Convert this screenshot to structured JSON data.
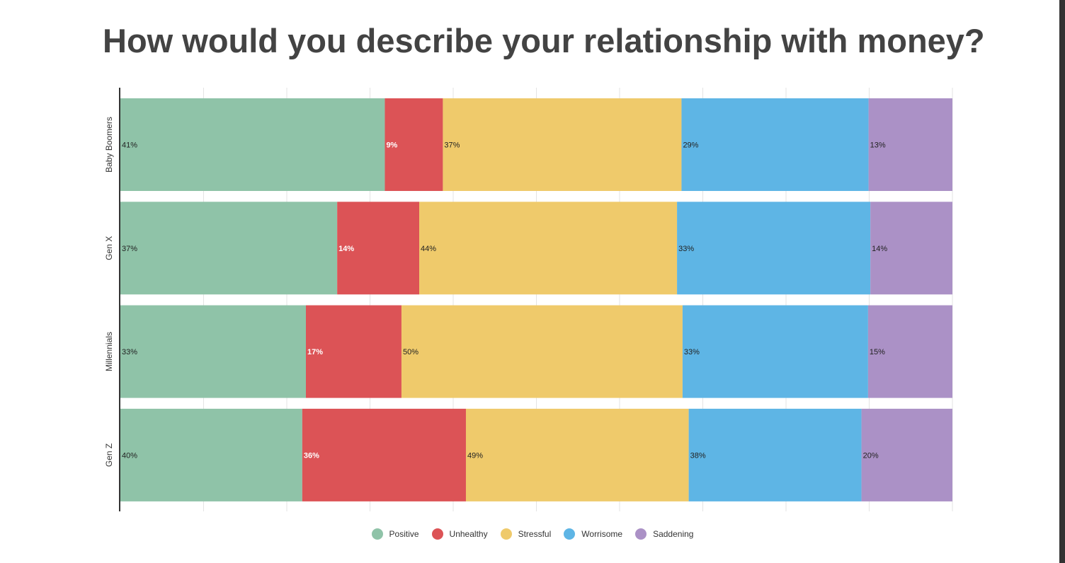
{
  "chart_data": {
    "type": "bar",
    "orientation": "horizontal",
    "stacked": true,
    "title": "How would you describe your relationship with money?",
    "categories": [
      "Baby Boomers",
      "Gen X",
      "Millennials",
      "Gen Z"
    ],
    "series": [
      {
        "name": "Positive",
        "color": "#8fc3a8",
        "label_color": "#222222",
        "label_bold": false,
        "values": [
          41,
          37,
          33,
          40
        ]
      },
      {
        "name": "Unhealthy",
        "color": "#dc5356",
        "label_color": "#ffffff",
        "label_bold": true,
        "values": [
          9,
          14,
          17,
          36
        ]
      },
      {
        "name": "Stressful",
        "color": "#efca6b",
        "label_color": "#222222",
        "label_bold": false,
        "values": [
          37,
          44,
          50,
          49
        ]
      },
      {
        "name": "Worrisome",
        "color": "#5eb5e5",
        "label_color": "#222222",
        "label_bold": false,
        "values": [
          29,
          33,
          33,
          38
        ]
      },
      {
        "name": "Saddening",
        "color": "#ab91c6",
        "label_color": "#222222",
        "label_bold": false,
        "values": [
          13,
          14,
          15,
          20
        ]
      }
    ],
    "value_suffix": "%",
    "normalized": true,
    "gridlines": true,
    "legend_position": "bottom"
  }
}
